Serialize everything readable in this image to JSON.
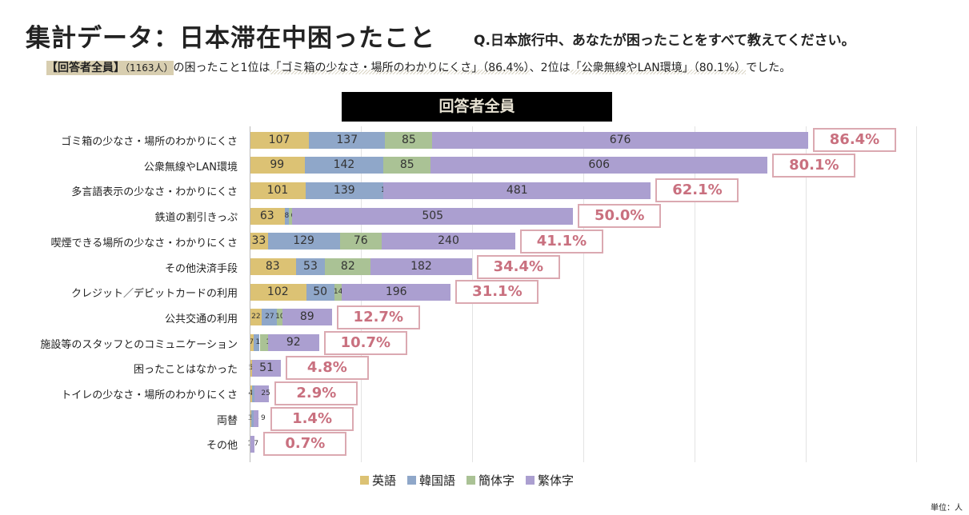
{
  "title": "集計データ：日本滞在中困ったこと",
  "question": "Q.日本旅行中、あなたが困ったことをすべて教えてください。",
  "summary": {
    "group": "【回答者全員】",
    "count": "（1163人）",
    "t1": "の困ったこと1位は",
    "first": "「ゴミ箱の少なさ・場所のわかりにくさ」（86.4%）",
    "t2": "、2位は",
    "second": "「公衆無線やLAN環境」（80.1%）",
    "t3": "でした。"
  },
  "unit_label": "単位：人",
  "chart_data": {
    "type": "bar",
    "orientation": "horizontal-stacked",
    "title": "回答者全員",
    "xlim": [
      0,
      1200
    ],
    "grid": true,
    "legend_position": "bottom",
    "colors": {
      "英語": "#dcc274",
      "韓国語": "#8fa7c9",
      "簡体字": "#aac295",
      "繁体字": "#ab9fd0",
      "pct_border": "#dba9b1",
      "pct_text": "#c9707f"
    },
    "categories": [
      "ゴミ箱の少なさ・場所のわかりにくさ",
      "公衆無線やLAN環境",
      "多言語表示の少なさ・わかりにくさ",
      "鉄道の割引きっぷ",
      "喫煙できる場所の少なさ・わかりにくさ",
      "その他決済手段",
      "クレジット／デビットカードの利用",
      "公共交通の利用",
      "施設等のスタッフとのコミュニケーション",
      "困ったことはなかった",
      "トイレの少なさ・場所のわかりにくさ",
      "両替",
      "その他"
    ],
    "series": [
      {
        "name": "英語",
        "values": [
          107,
          99,
          101,
          63,
          33,
          83,
          102,
          22,
          7,
          5,
          4,
          3,
          0
        ]
      },
      {
        "name": "韓国語",
        "values": [
          137,
          142,
          139,
          8,
          129,
          53,
          50,
          27,
          11,
          0,
          5,
          4,
          1
        ]
      },
      {
        "name": "簡体字",
        "values": [
          85,
          85,
          1,
          6,
          76,
          82,
          14,
          10,
          15,
          0,
          0,
          0,
          0
        ]
      },
      {
        "name": "繁体字",
        "values": [
          676,
          606,
          481,
          505,
          240,
          182,
          196,
          89,
          92,
          51,
          25,
          9,
          7
        ]
      }
    ],
    "percent_labels": [
      "86.4%",
      "80.1%",
      "62.1%",
      "50.0%",
      "41.1%",
      "34.4%",
      "31.1%",
      "12.7%",
      "10.7%",
      "4.8%",
      "2.9%",
      "1.4%",
      "0.7%"
    ]
  }
}
